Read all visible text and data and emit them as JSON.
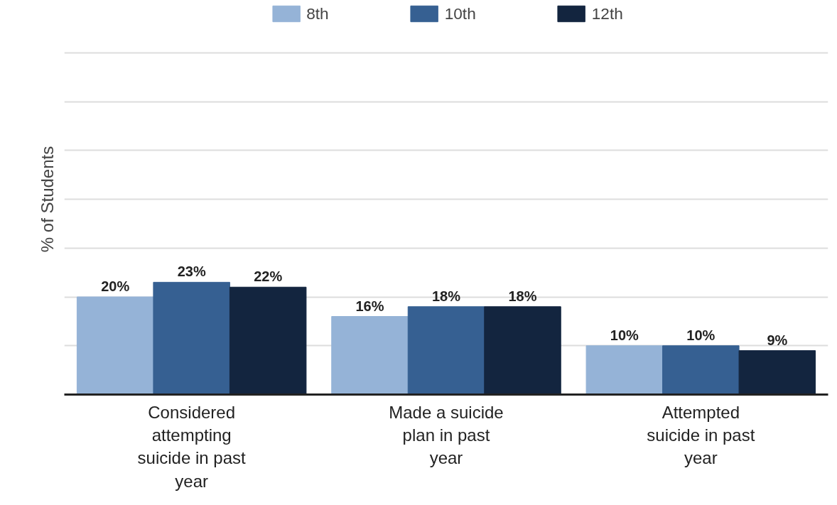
{
  "chart_data": {
    "type": "bar",
    "ylabel": "% of Students",
    "categories": [
      "Considered attempting suicide in past year",
      "Made a suicide plan in past year",
      "Attempted suicide in past year"
    ],
    "series": [
      {
        "name": "8th",
        "color": "#95b3d7",
        "values": [
          20,
          16,
          10
        ],
        "value_labels": [
          "20%",
          "16%",
          "10%"
        ]
      },
      {
        "name": "10th",
        "color": "#366092",
        "values": [
          23,
          18,
          10
        ],
        "value_labels": [
          "23%",
          "18%",
          "10%"
        ]
      },
      {
        "name": "12th",
        "color": "#13253f",
        "values": [
          22,
          18,
          9
        ],
        "value_labels": [
          "22%",
          "18%",
          "9%"
        ]
      }
    ],
    "ylim": [
      0,
      80
    ],
    "yticks": [
      {
        "value": 0,
        "label": null
      },
      {
        "value": 10,
        "label": null
      },
      {
        "value": 20,
        "label": null
      },
      {
        "value": 30,
        "label": null
      },
      {
        "value": 40,
        "label": null
      },
      {
        "value": 50,
        "label": null
      },
      {
        "value": 60,
        "label": null
      },
      {
        "value": 70,
        "label": null
      }
    ],
    "tick_labels": "x",
    "grid": "y",
    "legend": "top"
  }
}
